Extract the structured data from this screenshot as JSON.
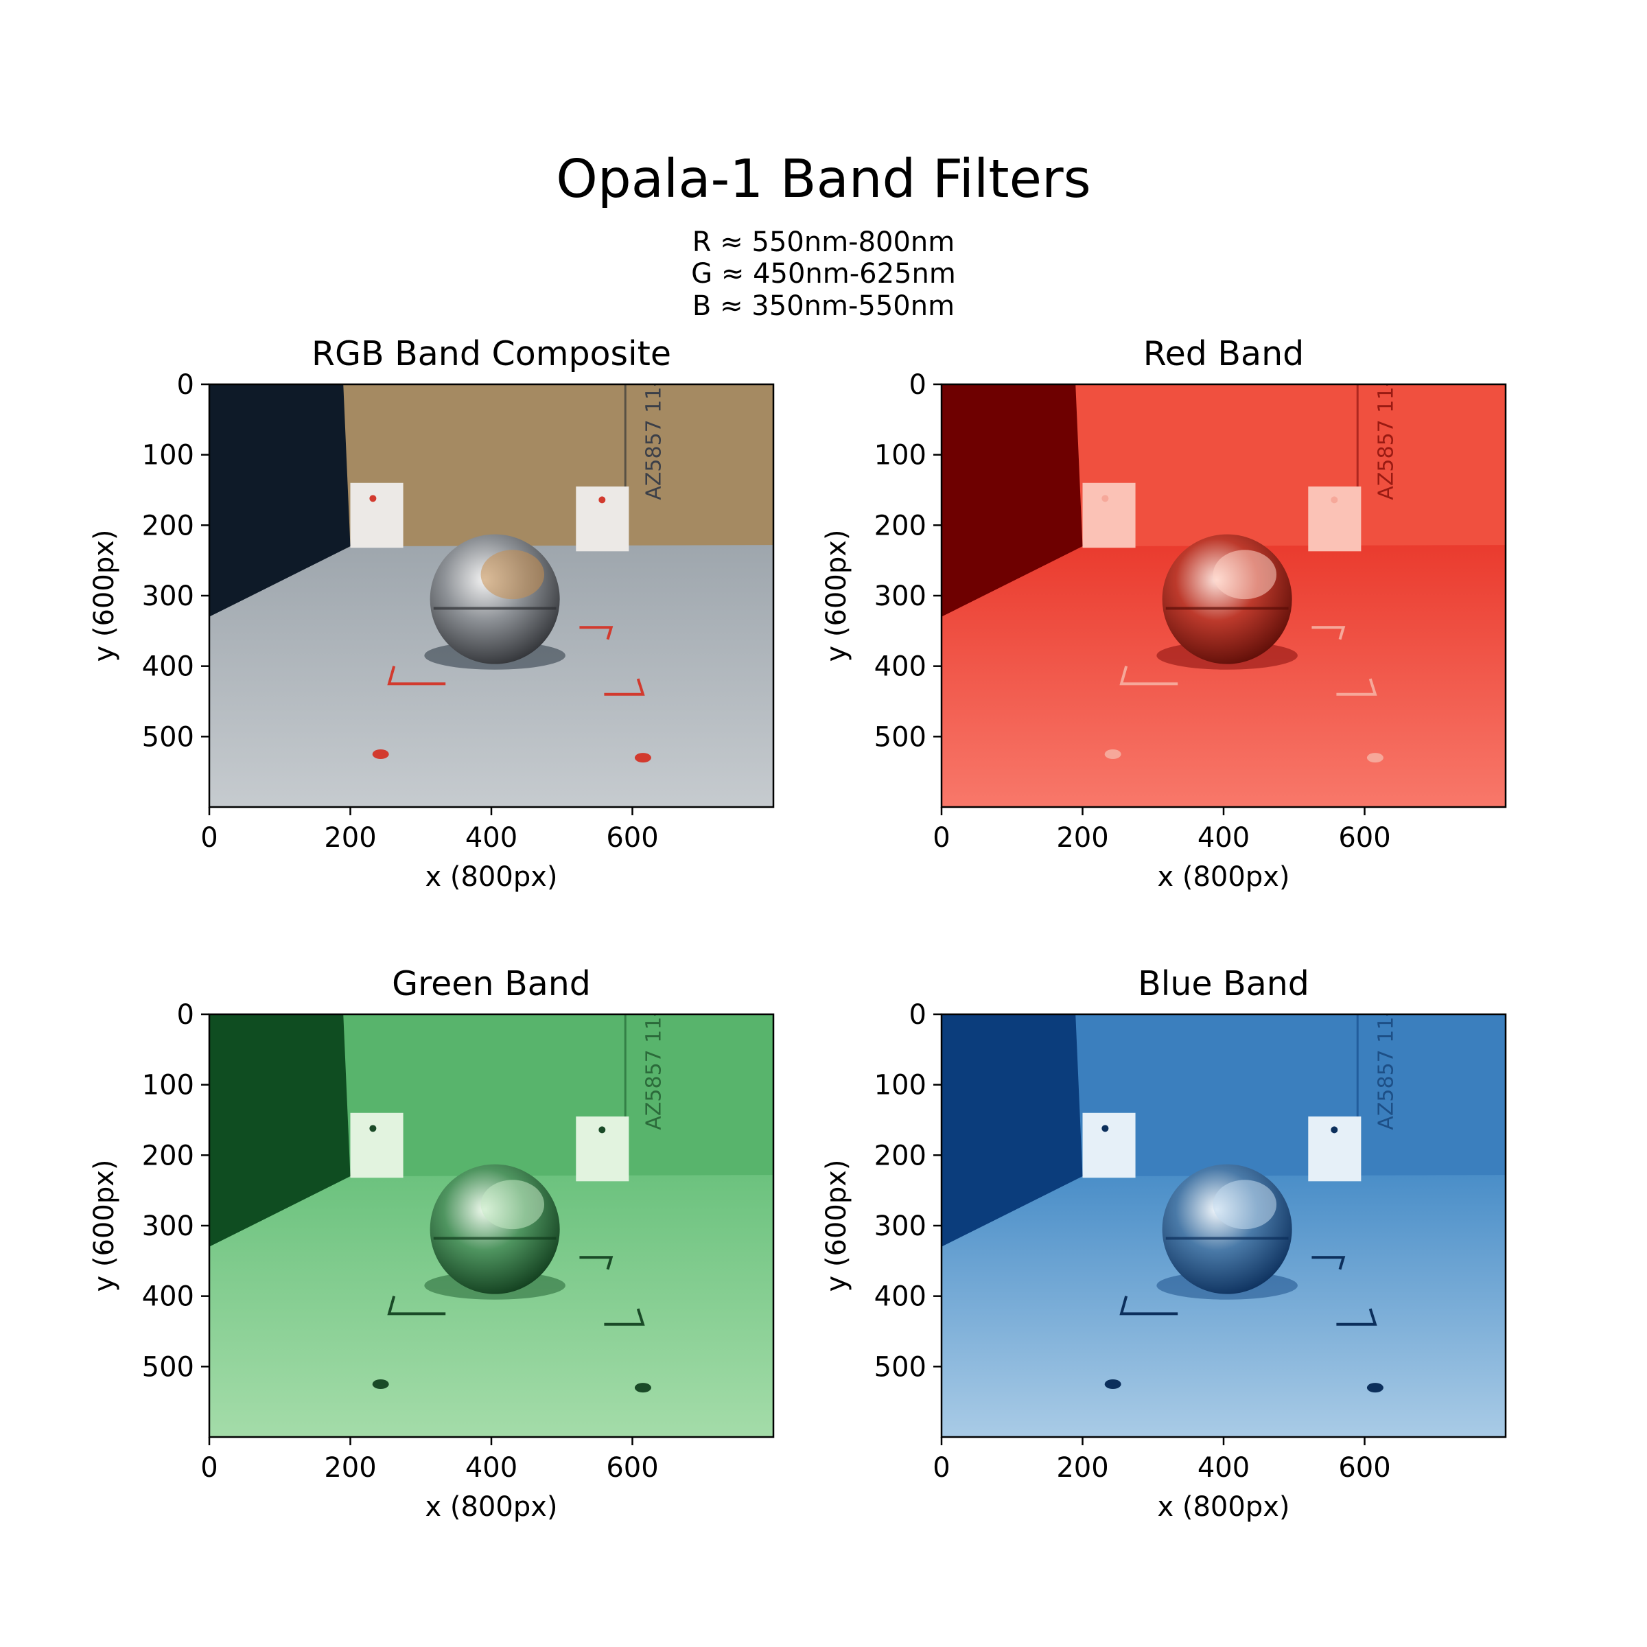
{
  "figure": {
    "title": "Opala-1 Band Filters",
    "subtitle_lines": [
      "R ≈ 550nm-800nm",
      "G ≈ 450nm-625nm",
      "B ≈ 350nm-550nm"
    ]
  },
  "axes_common": {
    "xlabel": "x (800px)",
    "ylabel": "y (600px)",
    "x_ticks": [
      "0",
      "200",
      "400",
      "600"
    ],
    "y_ticks": [
      "0",
      "100",
      "200",
      "300",
      "400",
      "500"
    ]
  },
  "panels": [
    {
      "title": "RGB Band Composite",
      "palette": {
        "dark": "#0e1a28",
        "wall": "#a58a62",
        "floor": "#9ea6ad",
        "floor_light": "#c6cbcf",
        "card": "#ece9e6",
        "sphere_hi": "#f2f2f2",
        "sphere_mid": "#8d9196",
        "sphere_dark": "#2d2f33",
        "marks": "#d23a2e",
        "text": "#3b3f48",
        "reflect": "#c89050"
      }
    },
    {
      "title": "Red Band",
      "palette": {
        "dark": "#6e0000",
        "wall": "#f0503f",
        "floor": "#ea3b2e",
        "floor_light": "#f8786a",
        "card": "#fbc2b6",
        "sphere_hi": "#fde4dd",
        "sphere_mid": "#bd3a2c",
        "sphere_dark": "#5a0c06",
        "marks": "#f6a89a",
        "text": "#991a12",
        "reflect": "#ffd3c6"
      }
    },
    {
      "title": "Green Band",
      "palette": {
        "dark": "#0f4d21",
        "wall": "#58b46c",
        "floor": "#6cc27e",
        "floor_light": "#a4dca9",
        "card": "#e2f3df",
        "sphere_hi": "#f0faee",
        "sphere_mid": "#4f9560",
        "sphere_dark": "#0f3a1b",
        "marks": "#1a4a27",
        "text": "#2b6a3a",
        "reflect": "#c5e9c4"
      }
    },
    {
      "title": "Blue Band",
      "palette": {
        "dark": "#0b3d7c",
        "wall": "#3b7fbe",
        "floor": "#4a8ec8",
        "floor_light": "#a9cbe6",
        "card": "#e6f0f8",
        "sphere_hi": "#f3f8fc",
        "sphere_mid": "#4a7aa8",
        "sphere_dark": "#0a2d5a",
        "marks": "#0c2f5c",
        "text": "#1d4f86",
        "reflect": "#c2daee"
      }
    }
  ]
}
